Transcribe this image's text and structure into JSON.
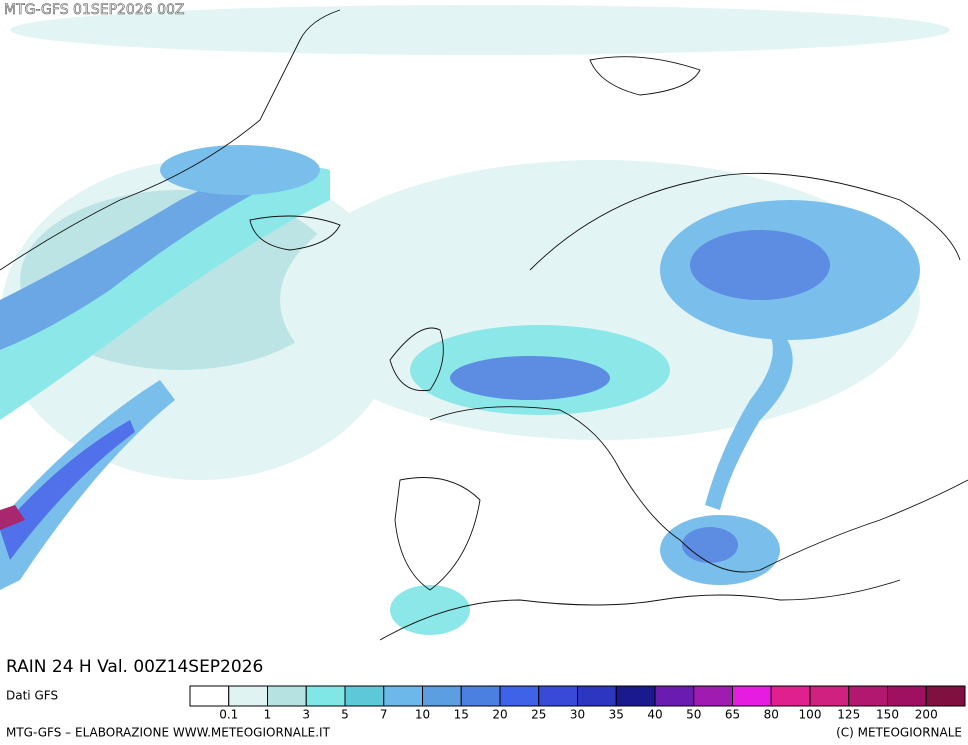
{
  "header": {
    "title": "MTG-GFS 01SEP2026 00Z"
  },
  "map": {
    "label": "RAIN 24 H Val. 00Z14SEP2026"
  },
  "legend": {
    "source": "Dati GFS",
    "colors": [
      "#ffffff",
      "#e0f3f3",
      "#b6e2e2",
      "#80e6e6",
      "#5cc8d8",
      "#6cb8ea",
      "#5c9ee2",
      "#4c80e0",
      "#3e62e8",
      "#3a4ad8",
      "#2c36c0",
      "#1a1a8e",
      "#6a1cb0",
      "#a01cb0",
      "#e61ce0",
      "#e0208c",
      "#d02080",
      "#b21870",
      "#a01060",
      "#801040"
    ],
    "labels": [
      0.1,
      1,
      3,
      5,
      7,
      10,
      15,
      20,
      25,
      30,
      35,
      40,
      50,
      65,
      80,
      100,
      125,
      150,
      200
    ]
  },
  "footer": {
    "left": "MTG-GFS – ELABORAZIONE WWW.METEOGIORNALE.IT",
    "right": "(C) METEOGIORNALE"
  }
}
